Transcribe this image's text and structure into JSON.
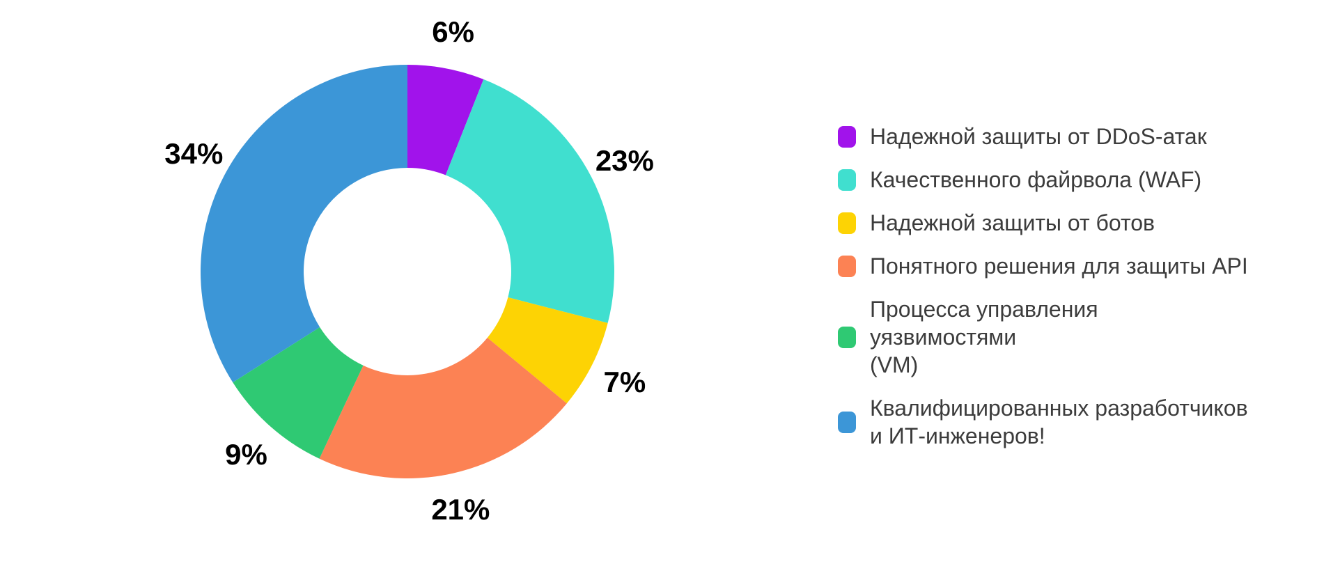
{
  "chart_data": {
    "type": "pie",
    "subtype": "donut",
    "title": "",
    "legend_position": "right",
    "direction": "clockwise",
    "start_angle_deg": 0,
    "donut_hole_ratio": 0.5,
    "background_color": "#ffffff",
    "categories": [
      "Надежной защиты от DDoS-атак",
      "Качественного файрвола (WAF)",
      "Надежной защиты от ботов",
      "Понятного решения для защиты API",
      "Процесса управления уязвимостями (VM)",
      "Квалифицированных разработчиков и ИТ-инженеров!"
    ],
    "values": [
      6,
      23,
      7,
      21,
      9,
      34
    ],
    "percent_labels": [
      "6%",
      "23%",
      "7%",
      "21%",
      "9%",
      "34%"
    ],
    "colors": [
      "#A113EB",
      "#40DFCF",
      "#FDD304",
      "#FC8254",
      "#2FC973",
      "#3C96D7"
    ],
    "label_color": "#000000",
    "legend_text_color": "#3c3c3c",
    "legend_labels_display": [
      "Надежной защиты от DDoS-атак",
      "Качественного файрвола (WAF)",
      "Надежной защиты от ботов",
      "Понятного решения для защиты API",
      "Процесса управления уязвимостями\n(VM)",
      "Квалифицированных разработчиков\nи ИТ-инженеров!"
    ]
  }
}
